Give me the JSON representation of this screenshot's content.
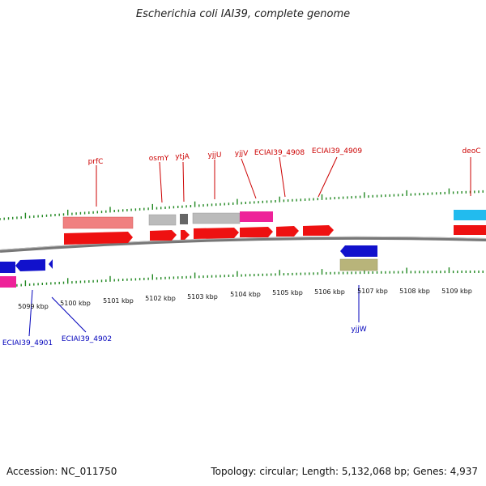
{
  "title": "Escherichia coli IAI39, complete genome",
  "footer": {
    "accession": "Accession: NC_011750",
    "summary": "Topology: circular; Length: 5,132,068 bp; Genes: 4,937"
  },
  "colors": {
    "forward_gene": "#ee1111",
    "forward_feature_light": "#f08080",
    "feature_gray": "#bbbbbb",
    "feature_darkgray": "#666666",
    "feature_magenta": "#ee2299",
    "feature_cyan": "#22bbee",
    "reverse_gene": "#1111cc",
    "reverse_feature_olive": "#b8b47a",
    "tick": "#228822",
    "backbone": "#777777",
    "forward_label": "#cc0000",
    "reverse_label": "#0000bb"
  },
  "ticks": [
    {
      "label": "5099 kbp"
    },
    {
      "label": "5100 kbp"
    },
    {
      "label": "5101 kbp"
    },
    {
      "label": "5102 kbp"
    },
    {
      "label": "5103 kbp"
    },
    {
      "label": "5104 kbp"
    },
    {
      "label": "5105 kbp"
    },
    {
      "label": "5106 kbp"
    },
    {
      "label": "5107 kbp"
    },
    {
      "label": "5108 kbp"
    },
    {
      "label": "5109 kbp"
    }
  ],
  "forward_labels": [
    "prfC",
    "osmY",
    "ytjA",
    "yjjU",
    "yjjV",
    "ECIAI39_4908",
    "ECIAI39_4909",
    "deoC"
  ],
  "reverse_labels": [
    "ECIAI39_4901",
    "ECIAI39_4902",
    "yjjW"
  ]
}
